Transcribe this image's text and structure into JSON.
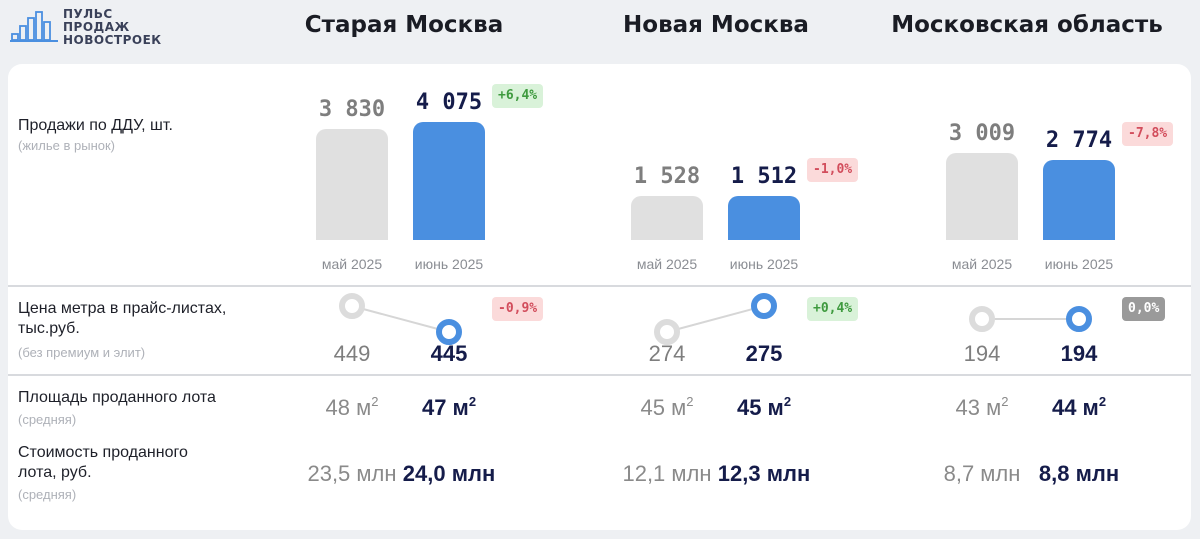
{
  "brand": {
    "line1": "ПУЛЬС",
    "line2": "ПРОДАЖ",
    "line3": "НОВОСТРОЕК",
    "color": "#4a8fe0"
  },
  "rows": {
    "sales": {
      "label": "Продажи по ДДУ, шт.",
      "sub": "(жилье в рынок)"
    },
    "price": {
      "label1": "Цена метра в прайс-листах,",
      "label2": "тыс.руб.",
      "sub": "(без премиум и элит)"
    },
    "area": {
      "label": "Площадь проданного лота",
      "sub": "(средняя)"
    },
    "cost": {
      "label1": "Стоимость проданного",
      "label2": "лота, руб.",
      "sub": "(средняя)"
    }
  },
  "periods": {
    "prev": "май 2025",
    "cur": "июнь 2025"
  },
  "colors": {
    "prev": "#e0e0e0",
    "cur": "#4a8fe0",
    "up": "#3e9a3e",
    "down": "#d24d5c"
  },
  "chart_data": {
    "type": "bar",
    "categories": [
      "май 2025",
      "июнь 2025"
    ],
    "regions": [
      {
        "name": "Старая Москва",
        "sales": {
          "prev": 3830,
          "cur": 4075,
          "prev_label": "3 830",
          "cur_label": "4 075",
          "change": "+6,4%",
          "trend": "up"
        },
        "price": {
          "prev": 449,
          "cur": 445,
          "prev_label": "449",
          "cur_label": "445",
          "change": "-0,9%",
          "trend": "down"
        },
        "area": {
          "prev": "48",
          "cur": "47",
          "unit": "м",
          "exp": "2"
        },
        "cost": {
          "prev": "23,5 млн",
          "cur": "24,0 млн"
        }
      },
      {
        "name": "Новая Москва",
        "sales": {
          "prev": 1528,
          "cur": 1512,
          "prev_label": "1 528",
          "cur_label": "1 512",
          "change": "-1,0%",
          "trend": "down"
        },
        "price": {
          "prev": 274,
          "cur": 275,
          "prev_label": "274",
          "cur_label": "275",
          "change": "+0,4%",
          "trend": "up"
        },
        "area": {
          "prev": "45",
          "cur": "45",
          "unit": "м",
          "exp": "2"
        },
        "cost": {
          "prev": "12,1 млн",
          "cur": "12,3 млн"
        }
      },
      {
        "name": "Московская область",
        "sales": {
          "prev": 3009,
          "cur": 2774,
          "prev_label": "3 009",
          "cur_label": "2 774",
          "change": "-7,8%",
          "trend": "down"
        },
        "price": {
          "prev": 194,
          "cur": 194,
          "prev_label": "194",
          "cur_label": "194",
          "change": "0,0%",
          "trend": "flat"
        },
        "area": {
          "prev": "43",
          "cur": "44",
          "unit": "м",
          "exp": "2"
        },
        "cost": {
          "prev": "8,7 млн",
          "cur": "8,8 млн"
        }
      }
    ]
  }
}
